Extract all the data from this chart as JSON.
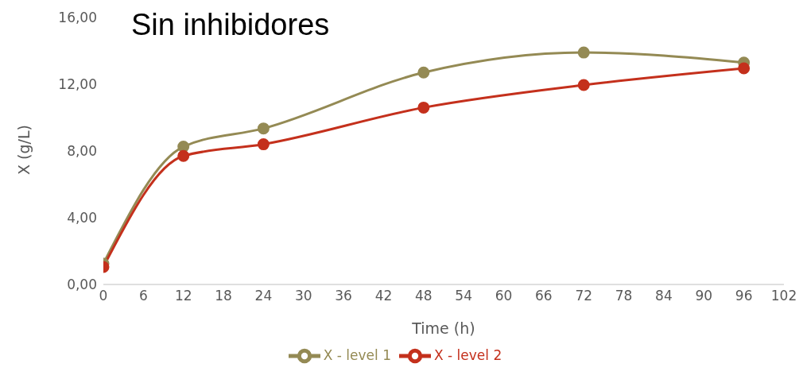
{
  "chart_data": {
    "type": "line",
    "title": "Sin inhibidores",
    "xlabel": "Time (h)",
    "ylabel": "X (g/L)",
    "x": [
      0,
      12,
      24,
      48,
      72,
      96
    ],
    "series": [
      {
        "name": "X - level 1",
        "color": "#948a54",
        "values": [
          1.25,
          8.26,
          9.35,
          12.7,
          13.9,
          13.3
        ]
      },
      {
        "name": "X - level 2",
        "color": "#c4301c",
        "values": [
          1.05,
          7.7,
          8.4,
          10.6,
          11.95,
          12.95
        ]
      }
    ],
    "xlim": [
      0,
      102
    ],
    "xticks": [
      0,
      6,
      12,
      18,
      24,
      30,
      36,
      42,
      48,
      54,
      60,
      66,
      72,
      78,
      84,
      90,
      96,
      102
    ],
    "ylim": [
      0,
      16
    ],
    "yticks": [
      {
        "value": 0,
        "label": "0,00"
      },
      {
        "value": 4,
        "label": "4,00"
      },
      {
        "value": 8,
        "label": "8,00"
      },
      {
        "value": 12,
        "label": "12,00"
      },
      {
        "value": 16,
        "label": "16,00"
      }
    ],
    "grid": false,
    "legend": "bottom",
    "marker": "circle",
    "line_style": "solid"
  }
}
